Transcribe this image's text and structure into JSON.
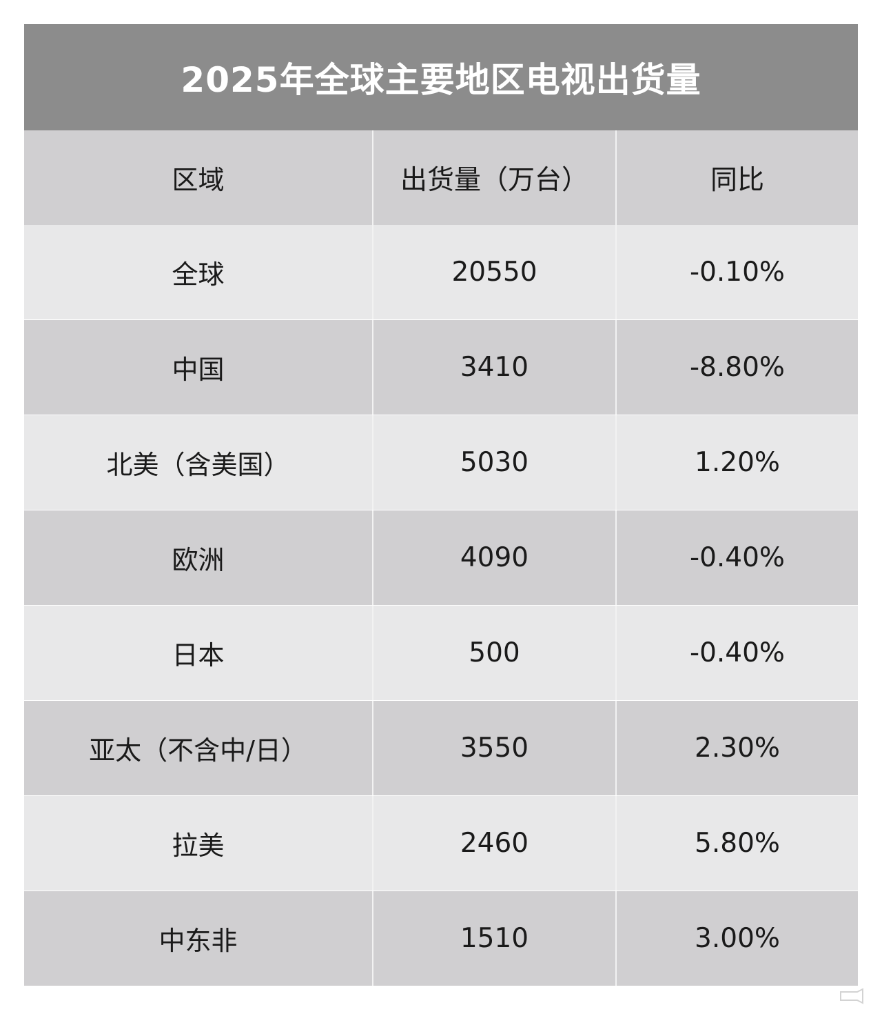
{
  "chart_data": {
    "type": "table",
    "title": "2025年全球主要地区电视出货量",
    "columns": [
      "区域",
      "出货量（万台）",
      "同比"
    ],
    "rows": [
      {
        "region": "全球",
        "shipment": "20550",
        "yoy": "-0.10%"
      },
      {
        "region": "中国",
        "shipment": "3410",
        "yoy": "-8.80%"
      },
      {
        "region": "北美（含美国）",
        "shipment": "5030",
        "yoy": "1.20%"
      },
      {
        "region": "欧洲",
        "shipment": "4090",
        "yoy": "-0.40%"
      },
      {
        "region": "日本",
        "shipment": "500",
        "yoy": "-0.40%"
      },
      {
        "region": "亚太（不含中/日）",
        "shipment": "3550",
        "yoy": "2.30%"
      },
      {
        "region": "拉美",
        "shipment": "2460",
        "yoy": "5.80%"
      },
      {
        "region": "中东非",
        "shipment": "1510",
        "yoy": "3.00%"
      }
    ]
  },
  "colors": {
    "title_bg": "#8c8c8c",
    "header_bg": "#d0cfd1",
    "row_light": "#e8e8e9",
    "row_dark": "#d0cfd1",
    "text": "#1a1a1a"
  }
}
